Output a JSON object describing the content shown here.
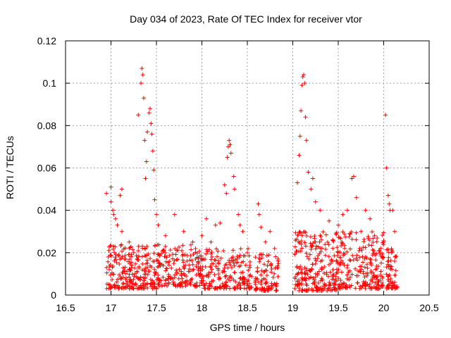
{
  "chart_data": {
    "type": "scatter",
    "title": "Day 034 of 2023, Rate Of TEC Index for receiver vtor",
    "xlabel": "GPS time / hours",
    "ylabel": "ROTI / TECUs",
    "xlim": [
      16.5,
      20.5
    ],
    "ylim": [
      0,
      0.12
    ],
    "x_ticks": [
      "16.5",
      "17",
      "17.5",
      "18",
      "18.5",
      "19",
      "19.5",
      "20",
      "20.5"
    ],
    "y_ticks": [
      "0",
      "0.02",
      "0.04",
      "0.06",
      "0.08",
      "0.1",
      "0.12"
    ],
    "grid": true,
    "marker": "+",
    "color": "#ff0000",
    "series": [
      {
        "points": [
          [
            16.95,
            0.048
          ],
          [
            16.97,
            0.018
          ],
          [
            16.98,
            0.012
          ],
          [
            17.0,
            0.051
          ],
          [
            17.0,
            0.044
          ],
          [
            17.02,
            0.04
          ],
          [
            17.03,
            0.038
          ],
          [
            17.05,
            0.036
          ],
          [
            17.07,
            0.033
          ],
          [
            17.1,
            0.047
          ],
          [
            17.12,
            0.05
          ],
          [
            17.12,
            0.03
          ],
          [
            17.15,
            0.017
          ],
          [
            17.2,
            0.025
          ],
          [
            17.25,
            0.02
          ],
          [
            17.3,
            0.085
          ],
          [
            17.33,
            0.1
          ],
          [
            17.34,
            0.107
          ],
          [
            17.35,
            0.104
          ],
          [
            17.36,
            0.093
          ],
          [
            17.37,
            0.073
          ],
          [
            17.38,
            0.055
          ],
          [
            17.39,
            0.063
          ],
          [
            17.4,
            0.077
          ],
          [
            17.42,
            0.086
          ],
          [
            17.43,
            0.088
          ],
          [
            17.44,
            0.081
          ],
          [
            17.45,
            0.076
          ],
          [
            17.46,
            0.068
          ],
          [
            17.47,
            0.059
          ],
          [
            17.48,
            0.045
          ],
          [
            17.5,
            0.038
          ],
          [
            17.52,
            0.033
          ],
          [
            17.6,
            0.028
          ],
          [
            17.7,
            0.038
          ],
          [
            17.8,
            0.03
          ],
          [
            17.9,
            0.025
          ],
          [
            18.0,
            0.028
          ],
          [
            18.05,
            0.036
          ],
          [
            18.1,
            0.025
          ],
          [
            18.15,
            0.033
          ],
          [
            18.2,
            0.034
          ],
          [
            18.25,
            0.052
          ],
          [
            18.27,
            0.048
          ],
          [
            18.28,
            0.065
          ],
          [
            18.29,
            0.07
          ],
          [
            18.3,
            0.073
          ],
          [
            18.31,
            0.071
          ],
          [
            18.32,
            0.067
          ],
          [
            18.35,
            0.056
          ],
          [
            18.36,
            0.05
          ],
          [
            18.4,
            0.038
          ],
          [
            18.42,
            0.033
          ],
          [
            18.45,
            0.03
          ],
          [
            18.5,
            0.02
          ],
          [
            18.62,
            0.043
          ],
          [
            18.63,
            0.038
          ],
          [
            18.65,
            0.032
          ],
          [
            18.7,
            0.025
          ],
          [
            18.75,
            0.03
          ],
          [
            18.8,
            0.022
          ],
          [
            19.05,
            0.053
          ],
          [
            19.07,
            0.066
          ],
          [
            19.08,
            0.075
          ],
          [
            19.09,
            0.087
          ],
          [
            19.1,
            0.099
          ],
          [
            19.11,
            0.103
          ],
          [
            19.12,
            0.104
          ],
          [
            19.13,
            0.1
          ],
          [
            19.14,
            0.084
          ],
          [
            19.15,
            0.073
          ],
          [
            19.17,
            0.058
          ],
          [
            19.2,
            0.05
          ],
          [
            19.22,
            0.055
          ],
          [
            19.25,
            0.044
          ],
          [
            19.3,
            0.04
          ],
          [
            19.4,
            0.035
          ],
          [
            19.5,
            0.033
          ],
          [
            19.55,
            0.038
          ],
          [
            19.6,
            0.04
          ],
          [
            19.65,
            0.055
          ],
          [
            19.67,
            0.056
          ],
          [
            19.7,
            0.046
          ],
          [
            19.75,
            0.03
          ],
          [
            19.8,
            0.04
          ],
          [
            19.85,
            0.036
          ],
          [
            19.9,
            0.028
          ],
          [
            20.0,
            0.025
          ],
          [
            20.02,
            0.085
          ],
          [
            20.03,
            0.06
          ],
          [
            20.05,
            0.047
          ],
          [
            20.06,
            0.043
          ],
          [
            20.07,
            0.04
          ],
          [
            20.1,
            0.04
          ],
          [
            20.12,
            0.03
          ],
          [
            20.12,
            0.016
          ]
        ]
      }
    ],
    "clusters": [
      {
        "x": [
          16.95,
          17.5
        ],
        "y": [
          0.003,
          0.024
        ],
        "n": 230
      },
      {
        "x": [
          17.5,
          18.0
        ],
        "y": [
          0.004,
          0.024
        ],
        "n": 190
      },
      {
        "x": [
          18.0,
          18.55
        ],
        "y": [
          0.003,
          0.022
        ],
        "n": 190
      },
      {
        "x": [
          18.58,
          18.85
        ],
        "y": [
          0.002,
          0.02
        ],
        "n": 90
      },
      {
        "x": [
          19.02,
          19.5
        ],
        "y": [
          0.002,
          0.03
        ],
        "n": 230
      },
      {
        "x": [
          19.5,
          20.0
        ],
        "y": [
          0.003,
          0.03
        ],
        "n": 210
      },
      {
        "x": [
          20.03,
          20.15
        ],
        "y": [
          0.003,
          0.022
        ],
        "n": 60
      }
    ]
  }
}
